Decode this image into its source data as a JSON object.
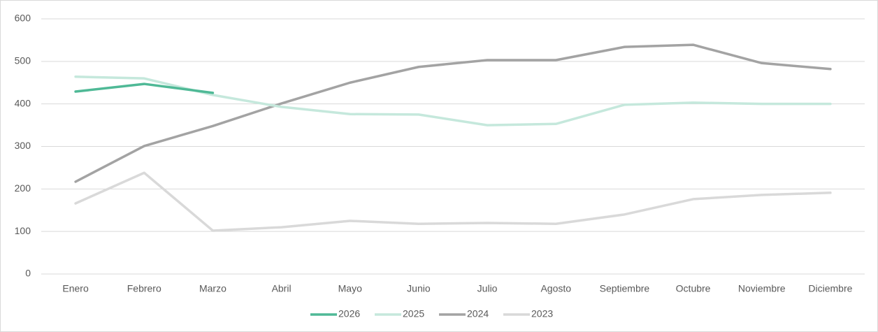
{
  "chart_data": {
    "type": "line",
    "categories": [
      "Enero",
      "Febrero",
      "Marzo",
      "Abril",
      "Mayo",
      "Junio",
      "Julio",
      "Agosto",
      "Septiembre",
      "Octubre",
      "Noviembre",
      "Diciembre"
    ],
    "series": [
      {
        "name": "2026",
        "color": "#4fb996",
        "values": [
          429,
          447,
          426,
          null,
          null,
          null,
          null,
          null,
          null,
          null,
          null,
          null
        ]
      },
      {
        "name": "2025",
        "color": "#c5e8dc",
        "values": [
          464,
          460,
          421,
          393,
          376,
          375,
          350,
          353,
          398,
          403,
          400,
          400
        ]
      },
      {
        "name": "2024",
        "color": "#a3a3a3",
        "values": [
          217,
          301,
          348,
          401,
          450,
          487,
          503,
          503,
          534,
          539,
          496,
          482
        ]
      },
      {
        "name": "2023",
        "color": "#d9d9d9",
        "values": [
          166,
          238,
          102,
          110,
          125,
          118,
          120,
          118,
          140,
          176,
          186,
          191
        ]
      }
    ],
    "ylim": [
      0,
      600
    ],
    "yticks": [
      0,
      100,
      200,
      300,
      400,
      500,
      600
    ],
    "grid": true,
    "legend": "bottom"
  }
}
